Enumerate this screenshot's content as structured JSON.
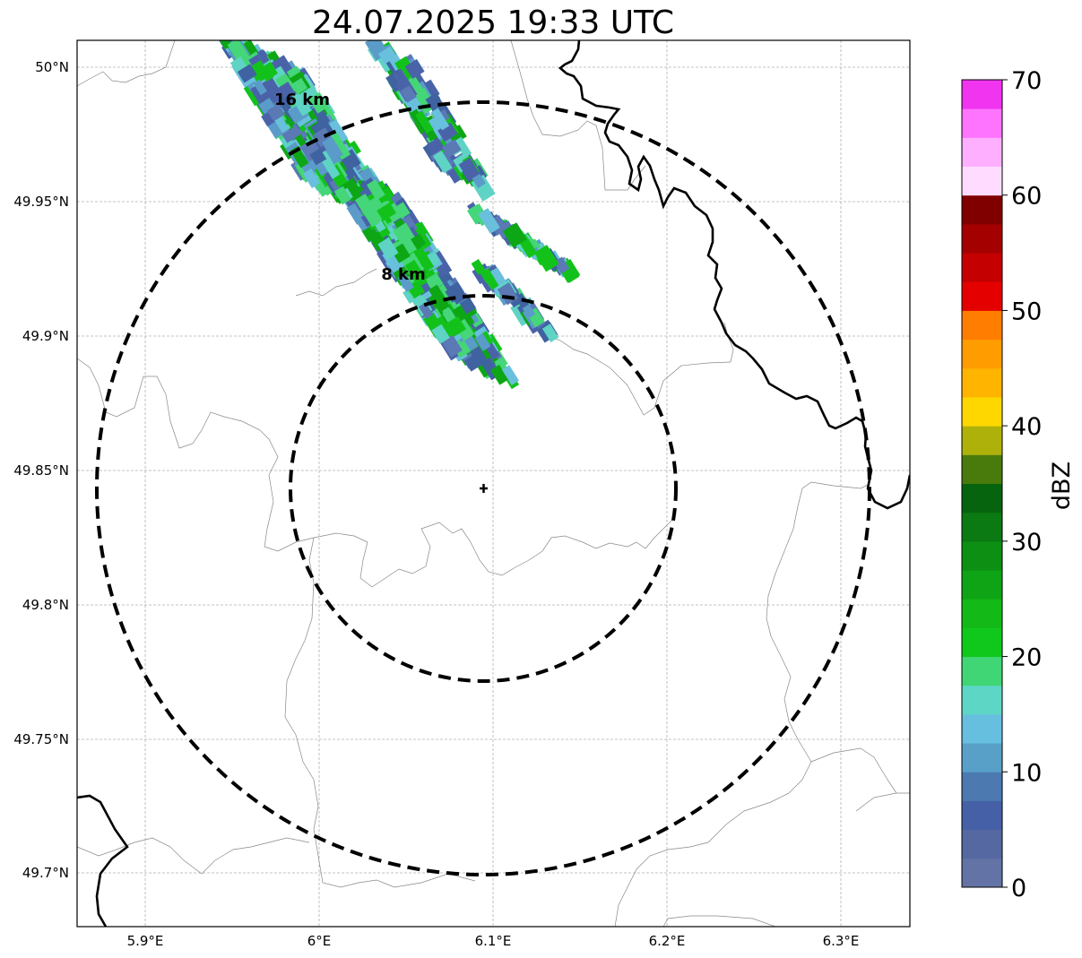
{
  "title": "24.07.2025 19:33 UTC",
  "lat_ticks": [
    "50°N",
    "49.95°N",
    "49.9°N",
    "49.85°N",
    "49.8°N",
    "49.75°N",
    "49.7°N"
  ],
  "lon_ticks": [
    "5.9°E",
    "6°E",
    "6.1°E",
    "6.2°E",
    "6.3°E"
  ],
  "rings": [
    {
      "label": "16 km",
      "radius_km": 16
    },
    {
      "label": "8 km",
      "radius_km": 8
    }
  ],
  "radar_site": {
    "lat": 49.843,
    "lon": 6.095
  },
  "colorbar": {
    "label": "dBZ",
    "ticks": [
      "0",
      "10",
      "20",
      "30",
      "40",
      "50",
      "60",
      "70"
    ],
    "min": 0,
    "max": 70,
    "step": 2.5,
    "colors": [
      "#6373a5",
      "#5668a2",
      "#4560a6",
      "#4b79b0",
      "#58a0c8",
      "#66bfdf",
      "#5ed6c6",
      "#40d675",
      "#10c81c",
      "#12b917",
      "#0fa416",
      "#0d8f14",
      "#0b7a12",
      "#06630e",
      "#487b0b",
      "#aeb10a",
      "#ffd700",
      "#ffb400",
      "#ff9c00",
      "#ff7d00",
      "#e50000",
      "#c40000",
      "#a50000",
      "#800000",
      "#ffdcff",
      "#ffafff",
      "#ff74ff",
      "#f034f0"
    ]
  },
  "echo_color_mix": [
    "#4a63a8",
    "#5a9bc9",
    "#68c0dd",
    "#5fd3c4",
    "#44d678",
    "#12c21b",
    "#0da615",
    "#3f62a0",
    "#5a79b5"
  ]
}
